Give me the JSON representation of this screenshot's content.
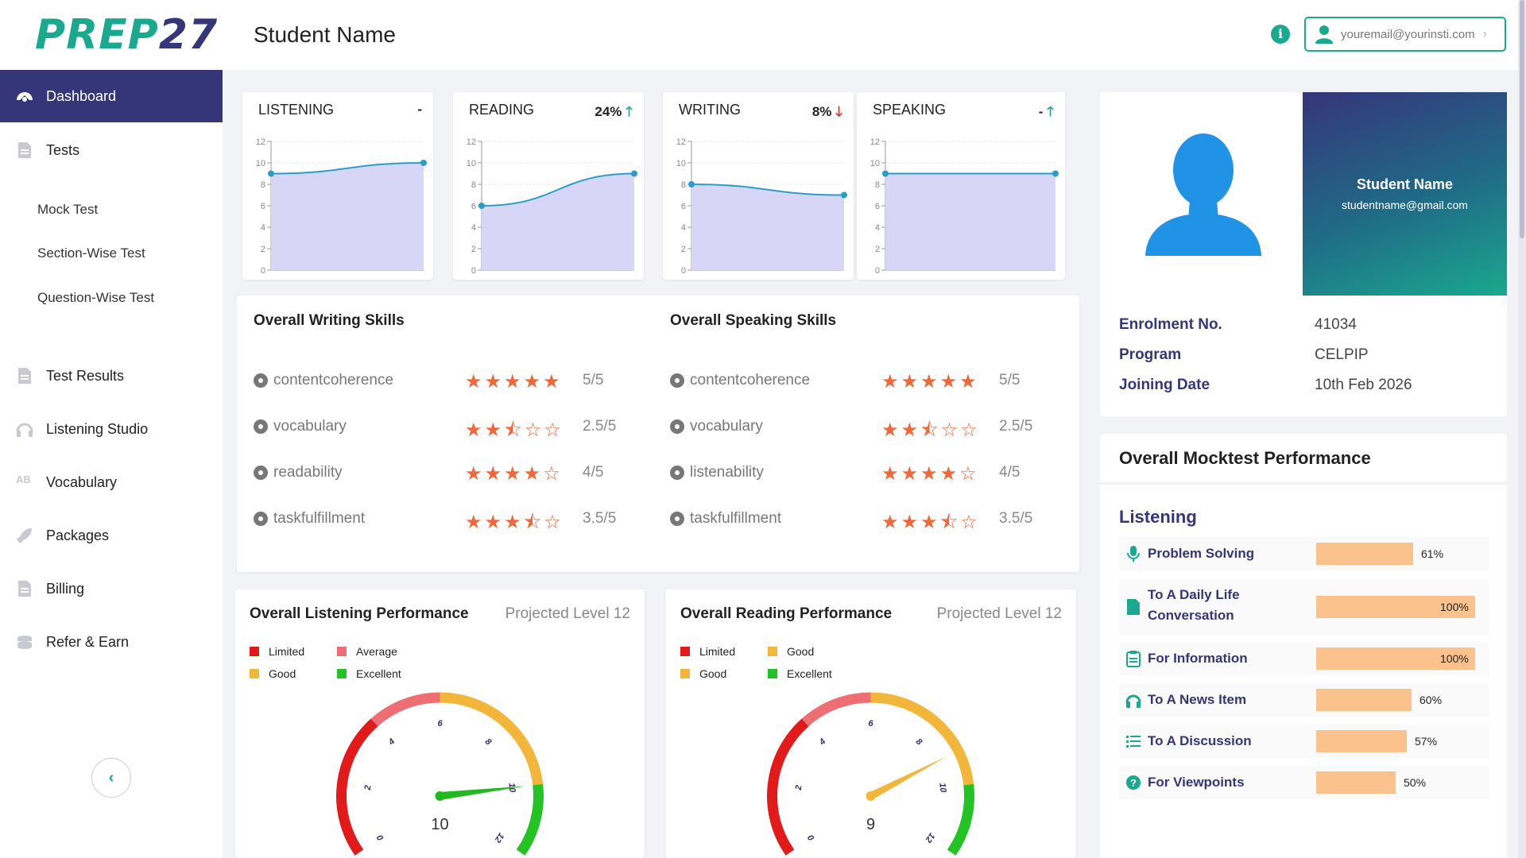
{
  "brand": {
    "logo_a": "PREP",
    "logo_b": "27"
  },
  "header": {
    "title": "Student Name",
    "email": "youremail@yourinsti.com"
  },
  "sidebar": {
    "items": [
      {
        "label": "Dashboard",
        "icon": "dashboard-icon"
      },
      {
        "label": "Tests",
        "icon": "document-icon"
      },
      {
        "label": "Test Results",
        "icon": "document-icon"
      },
      {
        "label": "Listening Studio",
        "icon": "headphones-icon"
      },
      {
        "label": "Vocabulary",
        "icon": "vocabulary-icon"
      },
      {
        "label": "Packages",
        "icon": "rocket-icon"
      },
      {
        "label": "Billing",
        "icon": "document-icon"
      },
      {
        "label": "Refer & Earn",
        "icon": "coins-icon"
      }
    ],
    "sub_items": [
      "Mock Test",
      "Section-Wise Test",
      "Question-Wise Test"
    ]
  },
  "mini_charts": [
    {
      "title": "LISTENING",
      "change": "-",
      "trend": "none",
      "values": [
        9,
        10
      ]
    },
    {
      "title": "READING",
      "change": "24%",
      "trend": "up",
      "values": [
        6,
        9
      ]
    },
    {
      "title": "WRITING",
      "change": "8%",
      "trend": "down",
      "values": [
        8,
        7
      ]
    },
    {
      "title": "SPEAKING",
      "change": "-",
      "trend": "up",
      "values": [
        9,
        9
      ]
    }
  ],
  "mini_axis": {
    "ticks": [
      "0",
      "2",
      "4",
      "6",
      "8",
      "10",
      "12"
    ],
    "ymax": 12
  },
  "writing_skills": {
    "title": "Overall Writing Skills",
    "rows": [
      {
        "name": "contentcoherence",
        "stars": 5,
        "score": "5/5"
      },
      {
        "name": "vocabulary",
        "stars": 2.5,
        "score": "2.5/5"
      },
      {
        "name": "readability",
        "stars": 4,
        "score": "4/5"
      },
      {
        "name": "taskfulfillment",
        "stars": 3.5,
        "score": "3.5/5"
      }
    ]
  },
  "speaking_skills": {
    "title": "Overall Speaking Skills",
    "rows": [
      {
        "name": "contentcoherence",
        "stars": 5,
        "score": "5/5"
      },
      {
        "name": "vocabulary",
        "stars": 2.5,
        "score": "2.5/5"
      },
      {
        "name": "listenability",
        "stars": 4,
        "score": "4/5"
      },
      {
        "name": "taskfulfillment",
        "stars": 3.5,
        "score": "3.5/5"
      }
    ]
  },
  "listening_perf": {
    "title": "Overall Listening Performance",
    "projected": "Projected Level 12",
    "legend": [
      {
        "label": "Limited",
        "color": "#e21a1a"
      },
      {
        "label": "Average",
        "color": "#ee6e73"
      },
      {
        "label": "Good",
        "color": "#f2b63a"
      },
      {
        "label": "Excellent",
        "color": "#22c322"
      }
    ],
    "value": 10,
    "value_label": "10",
    "needle_color": "#22b822"
  },
  "reading_perf": {
    "title": "Overall Reading Performance",
    "projected": "Projected Level 12",
    "legend": [
      {
        "label": "Limited",
        "color": "#e21a1a"
      },
      {
        "label": "Good",
        "color": "#f2b63a"
      },
      {
        "label": "Good",
        "color": "#f2b63a"
      },
      {
        "label": "Excellent",
        "color": "#22c322"
      }
    ],
    "value": 9,
    "value_label": "9",
    "needle_color": "#f2b63a"
  },
  "gauge_ticks": [
    "0",
    "2",
    "4",
    "6",
    "8",
    "10",
    "12"
  ],
  "profile": {
    "name": "Student Name",
    "email": "studentname@gmail.com",
    "fields": [
      {
        "key": "Enrolment No.",
        "value": "41034"
      },
      {
        "key": "Program",
        "value": "CELPIP"
      },
      {
        "key": "Joining Date",
        "value": "10th Feb 2026"
      }
    ]
  },
  "mocktest": {
    "title": "Overall Mocktest Performance",
    "section": "Listening",
    "rows": [
      {
        "label": "Problem Solving",
        "pct": 61,
        "pct_label": "61%",
        "icon": "microphone-icon"
      },
      {
        "label": "To A Daily Life Conversation",
        "pct": 100,
        "pct_label": "100%",
        "icon": "file-icon"
      },
      {
        "label": "For Information",
        "pct": 100,
        "pct_label": "100%",
        "icon": "clipboard-icon"
      },
      {
        "label": "To A News Item",
        "pct": 60,
        "pct_label": "60%",
        "icon": "headphones-icon"
      },
      {
        "label": "To A Discussion",
        "pct": 57,
        "pct_label": "57%",
        "icon": "list-icon"
      },
      {
        "label": "For Viewpoints",
        "pct": 50,
        "pct_label": "50%",
        "icon": "question-icon"
      }
    ]
  }
}
